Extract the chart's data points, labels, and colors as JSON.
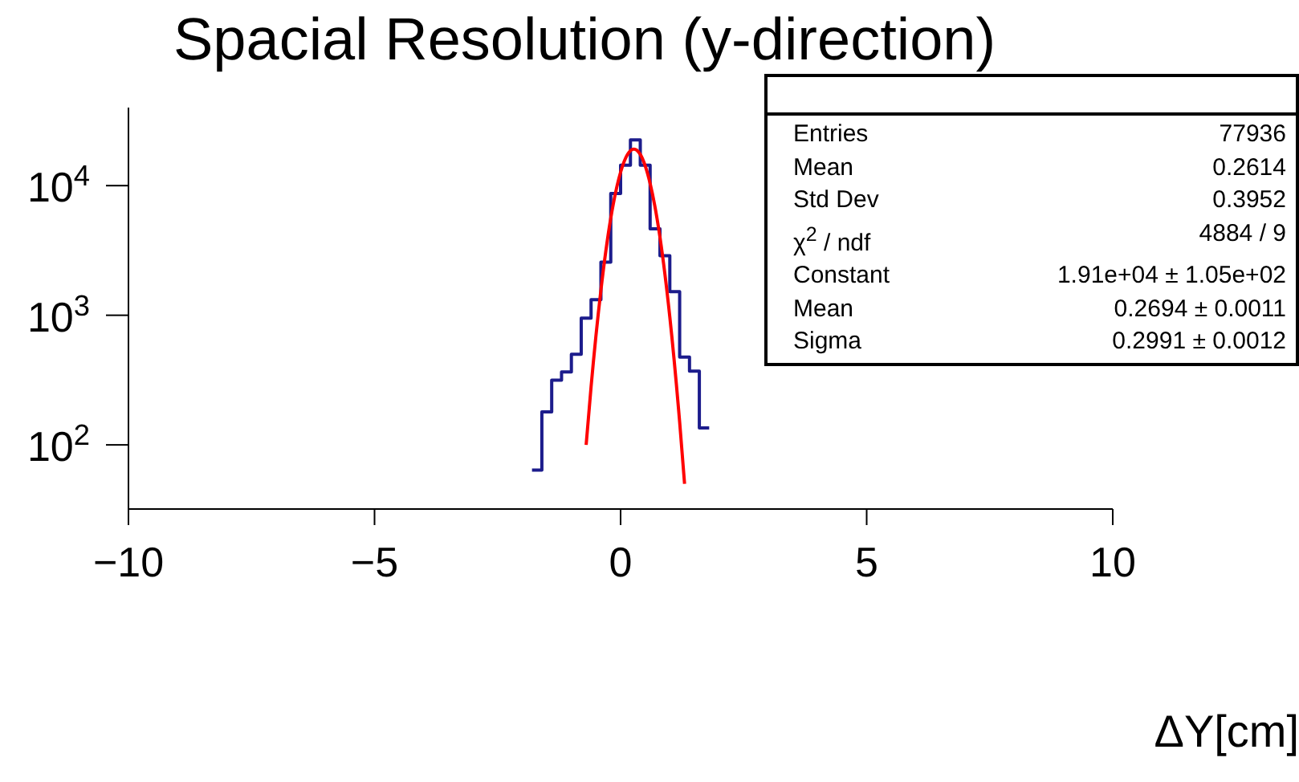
{
  "chart_data": {
    "type": "histogram",
    "title": "Spacial Resolution (y-direction)",
    "xlabel": "ΔY[cm]",
    "bins": [
      -1.8,
      -1.6,
      -1.4,
      -1.2,
      -1.0,
      -0.8,
      -0.6,
      -0.4,
      -0.2,
      0,
      0.2,
      0.4,
      0.6,
      0.8,
      1.0,
      1.2,
      1.4,
      1.6,
      1.8
    ],
    "values": [
      64,
      180,
      316,
      365,
      500,
      950,
      1320,
      2570,
      8700,
      14400,
      22500,
      14400,
      4650,
      2880,
      1520,
      475,
      370,
      135
    ],
    "color": "#1c1c8c",
    "series": [
      {
        "type": "line",
        "color": "#ff0000",
        "x": [
          -0.7,
          -0.6,
          -0.4,
          -0.2,
          0,
          0.2,
          0.27,
          0.4,
          0.6,
          0.8,
          1.0,
          1.2,
          1.3
        ],
        "values": [
          100,
          280,
          1560,
          5600,
          12700,
          18600,
          19100,
          17400,
          10400,
          4000,
          970,
          150,
          50
        ]
      }
    ],
    "log": "y",
    "marker": "none",
    "xlim": [
      -10,
      10
    ],
    "xticks": [
      {
        "value": -10,
        "label": "−10"
      },
      {
        "value": -5,
        "label": "−5"
      },
      0,
      5,
      10
    ],
    "ylim": [
      32,
      40000
    ],
    "yticks": [
      {
        "value": 100,
        "label": "10$^{2}$"
      },
      {
        "value": 1000,
        "label": "10$^{3}$"
      },
      {
        "value": 10000,
        "label": "10$^{4}$"
      }
    ],
    "annotations": [
      "Entries",
      "77936",
      "Mean",
      "0.2614",
      "Std Dev",
      "0.3952",
      "χ$^{2}$ / ndf",
      "4884 / 9",
      "Constant",
      "1.91e+04 ± 1.05e+02",
      "Mean",
      "0.2694 ± 0.0011",
      "Sigma",
      "0.2991 ± 0.0012"
    ]
  }
}
